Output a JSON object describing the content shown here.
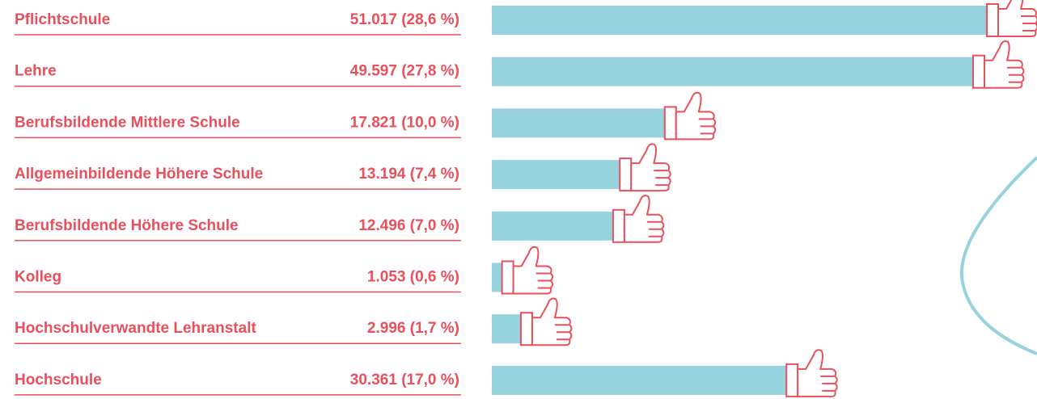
{
  "chart_data": {
    "type": "bar",
    "orientation": "horizontal",
    "categories": [
      "Pflichtschule",
      "Lehre",
      "Berufsbildende Mittlere Schule",
      "Allgemeinbildende Höhere Schule",
      "Berufsbildende Höhere Schule",
      "Kolleg",
      "Hochschulverwandte Lehranstalt",
      "Hochschule"
    ],
    "values": [
      51017,
      49597,
      17821,
      13194,
      12496,
      1053,
      2996,
      30361
    ],
    "value_labels": [
      "51.017 (28,6 %)",
      "49.597 (27,8 %)",
      "17.821 (10,0 %)",
      "13.194 (7,4 %)",
      "12.496 (7,0 %)",
      "1.053 (0,6 %)",
      "2.996 (1,7 %)",
      "30.361 (17,0 %)"
    ],
    "color": "#96d3de",
    "label_color": "#e8505b"
  }
}
